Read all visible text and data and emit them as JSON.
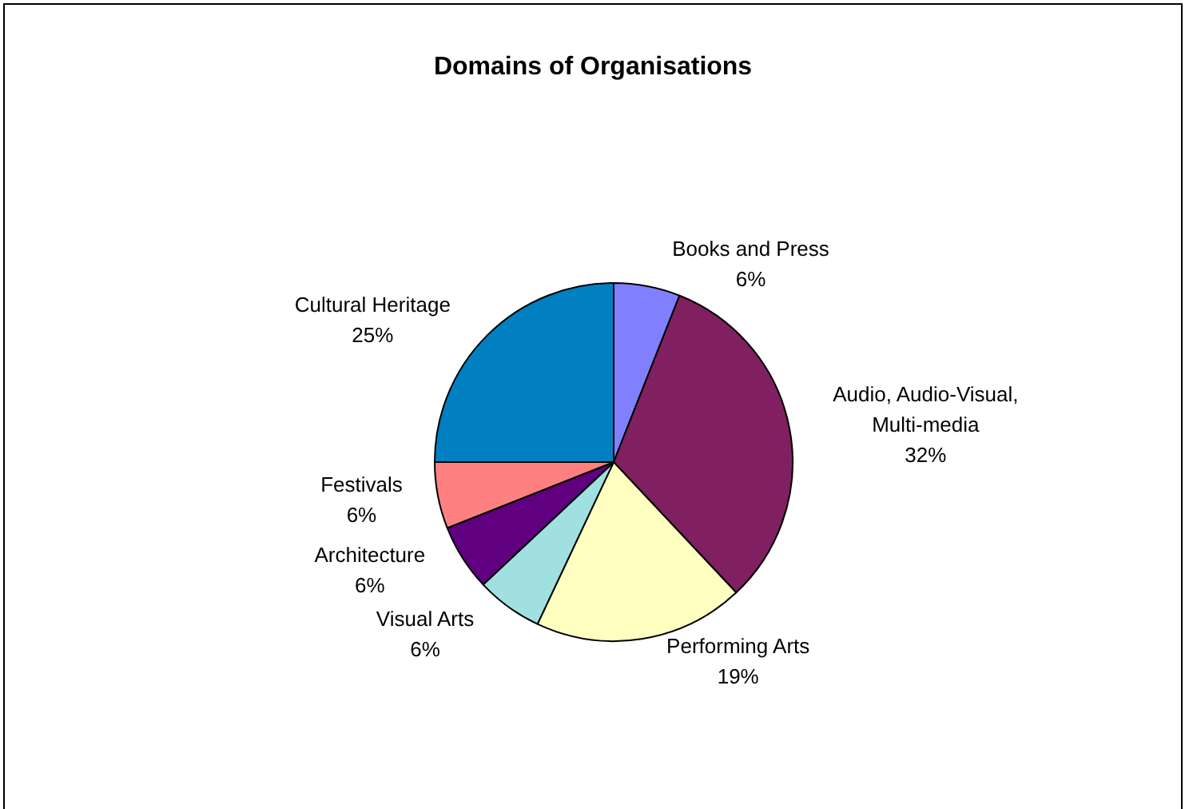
{
  "chart_data": {
    "type": "pie",
    "title": "Domains of Organisations",
    "categories": [
      "Books and Press",
      "Audio, Audio-Visual, Multi-media",
      "Performing Arts",
      "Visual Arts",
      "Architecture",
      "Festivals",
      "Cultural Heritage"
    ],
    "values": [
      6,
      32,
      19,
      6,
      6,
      6,
      25
    ],
    "colors": [
      "#8080ff",
      "#802060",
      "#ffffc0",
      "#a0e0e0",
      "#600080",
      "#ff8080",
      "#0080c0"
    ],
    "value_labels": [
      "6%",
      "32%",
      "19%",
      "6%",
      "6%",
      "6%",
      "25%"
    ],
    "legend": false
  }
}
